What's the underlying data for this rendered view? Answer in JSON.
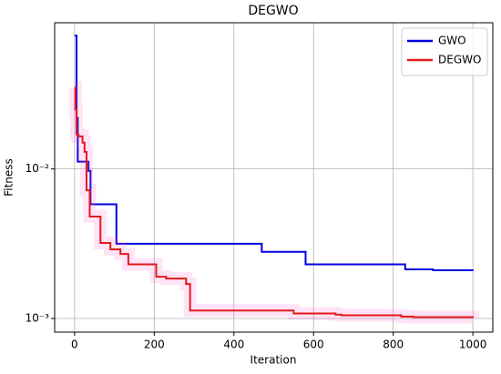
{
  "chart_data": {
    "type": "line",
    "drawstyle": "steps-post",
    "title": "DEGWO",
    "xlabel": "Iteration",
    "ylabel": "Fitness",
    "yscale": "log",
    "grid": true,
    "legend": "upper right",
    "xlim": [
      -50,
      1050
    ],
    "xticks": [
      0,
      200,
      400,
      600,
      800,
      1000
    ],
    "ylim": [
      0.00081,
      0.095
    ],
    "yticks": [
      {
        "value": 0.001,
        "label": "10⁻³"
      },
      {
        "value": 0.01,
        "label": "10⁻²"
      }
    ],
    "series": [
      {
        "name": "GWO",
        "color": "#0000e0",
        "x": [
          0,
          5,
          8,
          35,
          40,
          105,
          470,
          580,
          830,
          900,
          1000
        ],
        "values": [
          0.078,
          0.022,
          0.0112,
          0.0097,
          0.0058,
          0.00316,
          0.00279,
          0.0023,
          0.00213,
          0.0021,
          0.00209
        ]
      },
      {
        "name": "DEGWO",
        "color": "#e31a1c",
        "x": [
          0,
          2,
          5,
          10,
          20,
          25,
          30,
          38,
          65,
          90,
          115,
          135,
          205,
          230,
          280,
          290,
          550,
          655,
          670,
          820,
          850,
          1000
        ],
        "values": [
          0.035,
          0.025,
          0.017,
          0.0165,
          0.015,
          0.013,
          0.0072,
          0.0048,
          0.0032,
          0.0029,
          0.0027,
          0.0023,
          0.0019,
          0.00185,
          0.0017,
          0.00113,
          0.00108,
          0.00106,
          0.00105,
          0.00103,
          0.00102,
          0.00101
        ]
      }
    ]
  }
}
